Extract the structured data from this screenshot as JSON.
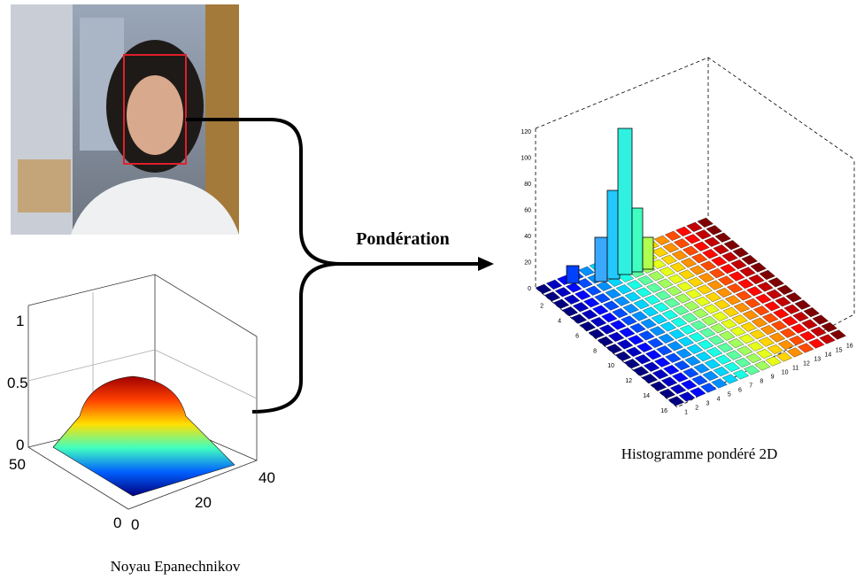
{
  "label": "Pondération",
  "kernel_plot": {
    "caption": "Noyau Epanechnikov",
    "z_ticks": [
      1,
      0.5,
      0
    ],
    "y_ticks": [
      50,
      0
    ],
    "x_ticks": [
      0,
      20,
      40
    ]
  },
  "histogram": {
    "caption": "Histogramme pondéré 2D",
    "z_ticks": [
      0,
      20,
      40,
      60,
      80,
      100,
      120
    ],
    "y_ticks": [
      2,
      4,
      6,
      8,
      10,
      12,
      14,
      16
    ],
    "x_ticks": [
      1,
      2,
      3,
      4,
      5,
      6,
      7,
      8,
      9,
      10,
      11,
      12,
      13,
      14,
      15,
      16
    ]
  }
}
